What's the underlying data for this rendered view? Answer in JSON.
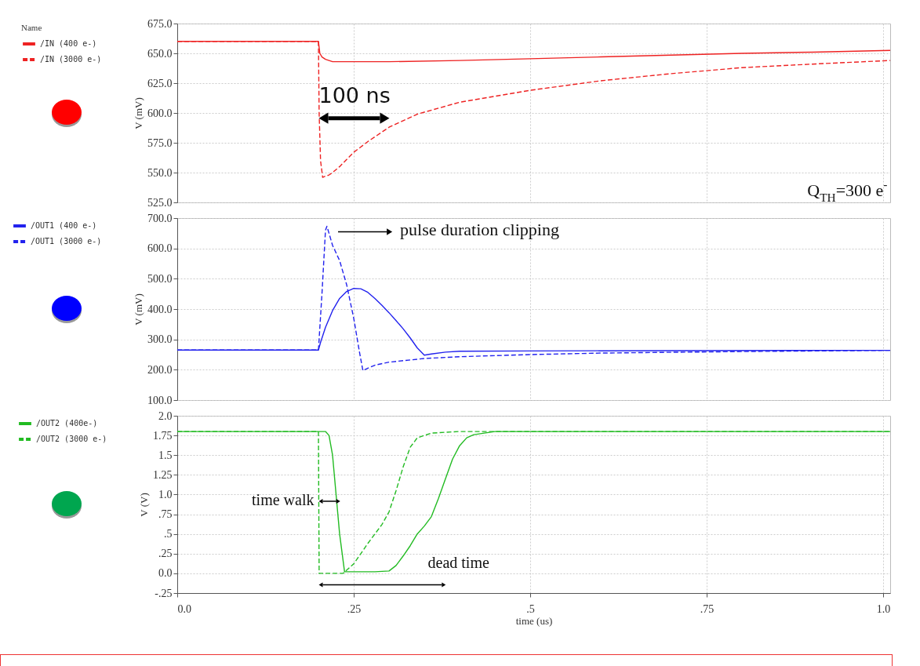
{
  "chart_data": [
    {
      "type": "line",
      "ylabel": "V (mV)",
      "legend_title": "Name",
      "legend": "left",
      "grid": true,
      "tick_labels": "y",
      "xlim": [
        0,
        1.01
      ],
      "xticks": [
        0,
        0.25,
        0.5,
        0.75,
        1
      ],
      "ylim": [
        525,
        675
      ],
      "yticks": [
        {
          "value": 525,
          "label": "525.0"
        },
        {
          "value": 550,
          "label": "550.0"
        },
        {
          "value": 575,
          "label": "575.0"
        },
        {
          "value": 600,
          "label": "600.0"
        },
        {
          "value": 625,
          "label": "625.0"
        },
        {
          "value": 650,
          "label": "650.0"
        },
        {
          "value": 675,
          "label": "675.0"
        }
      ],
      "series": [
        {
          "name": "/IN (400 e-)",
          "color": "#ee2222",
          "line_style": "solid",
          "x": [
            0,
            0.2,
            0.202,
            0.205,
            0.21,
            0.22,
            0.25,
            0.3,
            0.4,
            0.5,
            0.6,
            0.7,
            0.8,
            0.9,
            1.01
          ],
          "values": [
            660,
            660,
            650,
            647,
            645,
            643,
            643,
            643,
            644,
            645.5,
            647,
            648.5,
            650,
            651,
            652.5
          ]
        },
        {
          "name": "/IN (3000 e-)",
          "color": "#ee2222",
          "line_style": "dashed",
          "x": [
            0,
            0.2,
            0.201,
            0.203,
            0.206,
            0.21,
            0.215,
            0.22,
            0.23,
            0.24,
            0.25,
            0.27,
            0.3,
            0.34,
            0.4,
            0.5,
            0.6,
            0.7,
            0.8,
            0.9,
            1.01
          ],
          "values": [
            660,
            660,
            600,
            560,
            546,
            547,
            548,
            550,
            555,
            561,
            567,
            576,
            588,
            599,
            609,
            619,
            627,
            633,
            638,
            641,
            644
          ]
        }
      ],
      "annotations": [
        "100 ns",
        "Q$_{TH}$=300 e$^{-}$"
      ]
    },
    {
      "type": "line",
      "ylabel": "V (mV)",
      "legend": "left",
      "grid": true,
      "tick_labels": "y",
      "xlim": [
        0,
        1.01
      ],
      "xticks": [
        0,
        0.25,
        0.5,
        0.75,
        1
      ],
      "ylim": [
        100,
        700
      ],
      "yticks": [
        {
          "value": 100,
          "label": "100.0"
        },
        {
          "value": 200,
          "label": "200.0"
        },
        {
          "value": 300,
          "label": "300.0"
        },
        {
          "value": 400,
          "label": "400.0"
        },
        {
          "value": 500,
          "label": "500.0"
        },
        {
          "value": 600,
          "label": "600.0"
        },
        {
          "value": 700,
          "label": "700.0"
        }
      ],
      "series": [
        {
          "name": "/OUT1 (400 e-)",
          "color": "#2222ee",
          "line_style": "solid",
          "x": [
            0,
            0.2,
            0.203,
            0.21,
            0.22,
            0.23,
            0.24,
            0.25,
            0.26,
            0.27,
            0.28,
            0.29,
            0.3,
            0.31,
            0.32,
            0.33,
            0.34,
            0.35,
            0.36,
            0.38,
            0.4,
            0.5,
            0.7,
            1.01
          ],
          "values": [
            265,
            265,
            290,
            340,
            395,
            435,
            458,
            468,
            467,
            455,
            435,
            412,
            388,
            362,
            335,
            305,
            272,
            248,
            252,
            258,
            261,
            262,
            263,
            264
          ]
        },
        {
          "name": "/OUT1 (3000 e-)",
          "color": "#2222ee",
          "line_style": "dashed",
          "x": [
            0,
            0.2,
            0.205,
            0.21,
            0.212,
            0.215,
            0.22,
            0.23,
            0.24,
            0.25,
            0.258,
            0.263,
            0.27,
            0.28,
            0.3,
            0.35,
            0.4,
            0.5,
            0.6,
            0.8,
            1.01
          ],
          "values": [
            265,
            265,
            450,
            660,
            673,
            650,
            610,
            560,
            480,
            370,
            260,
            197,
            205,
            215,
            225,
            237,
            243,
            250,
            255,
            260,
            264
          ]
        }
      ],
      "annotations": [
        "pulse duration clipping"
      ]
    },
    {
      "type": "line",
      "xlabel": "time (us)",
      "ylabel": "V (V)",
      "legend": "left",
      "grid": true,
      "xlim": [
        0,
        1.01
      ],
      "xticks": [
        {
          "value": 0,
          "label": "0.0"
        },
        {
          "value": 0.25,
          "label": ".25"
        },
        {
          "value": 0.5,
          "label": ".5"
        },
        {
          "value": 0.75,
          "label": ".75"
        },
        {
          "value": 1,
          "label": "1.0"
        }
      ],
      "ylim": [
        -0.25,
        2
      ],
      "yticks": [
        {
          "value": -0.25,
          "label": "-.25"
        },
        {
          "value": 0,
          "label": "0.0"
        },
        {
          "value": 0.25,
          "label": ".25"
        },
        {
          "value": 0.5,
          "label": ".5"
        },
        {
          "value": 0.75,
          "label": ".75"
        },
        {
          "value": 1,
          "label": "1.0"
        },
        1.25,
        1.5,
        1.75,
        {
          "value": 2,
          "label": "2.0"
        }
      ],
      "series": [
        {
          "name": "/OUT2 (400e-)",
          "color": "#22bb22",
          "line_style": "solid",
          "x": [
            0,
            0.21,
            0.215,
            0.22,
            0.225,
            0.23,
            0.237,
            0.28,
            0.3,
            0.31,
            0.32,
            0.33,
            0.34,
            0.35,
            0.36,
            0.37,
            0.38,
            0.39,
            0.4,
            0.41,
            0.42,
            0.45,
            1.01
          ],
          "values": [
            1.8,
            1.8,
            1.75,
            1.5,
            1.0,
            0.5,
            0.02,
            0.02,
            0.03,
            0.1,
            0.22,
            0.35,
            0.5,
            0.6,
            0.72,
            0.95,
            1.2,
            1.45,
            1.62,
            1.72,
            1.76,
            1.8,
            1.8
          ]
        },
        {
          "name": "/OUT2 (3000 e-)",
          "color": "#22bb22",
          "line_style": "dashed",
          "x": [
            0,
            0.2,
            0.201,
            0.235,
            0.25,
            0.26,
            0.27,
            0.28,
            0.29,
            0.3,
            0.31,
            0.32,
            0.33,
            0.34,
            0.36,
            0.4,
            1.01
          ],
          "values": [
            1.8,
            1.8,
            0,
            0,
            0.12,
            0.25,
            0.38,
            0.5,
            0.62,
            0.78,
            1.05,
            1.35,
            1.6,
            1.72,
            1.78,
            1.8,
            1.8
          ]
        }
      ],
      "annotations": [
        {
          "text": "time walk",
          "x": 0.2,
          "y": 0.92
        },
        "dead time"
      ]
    }
  ]
}
